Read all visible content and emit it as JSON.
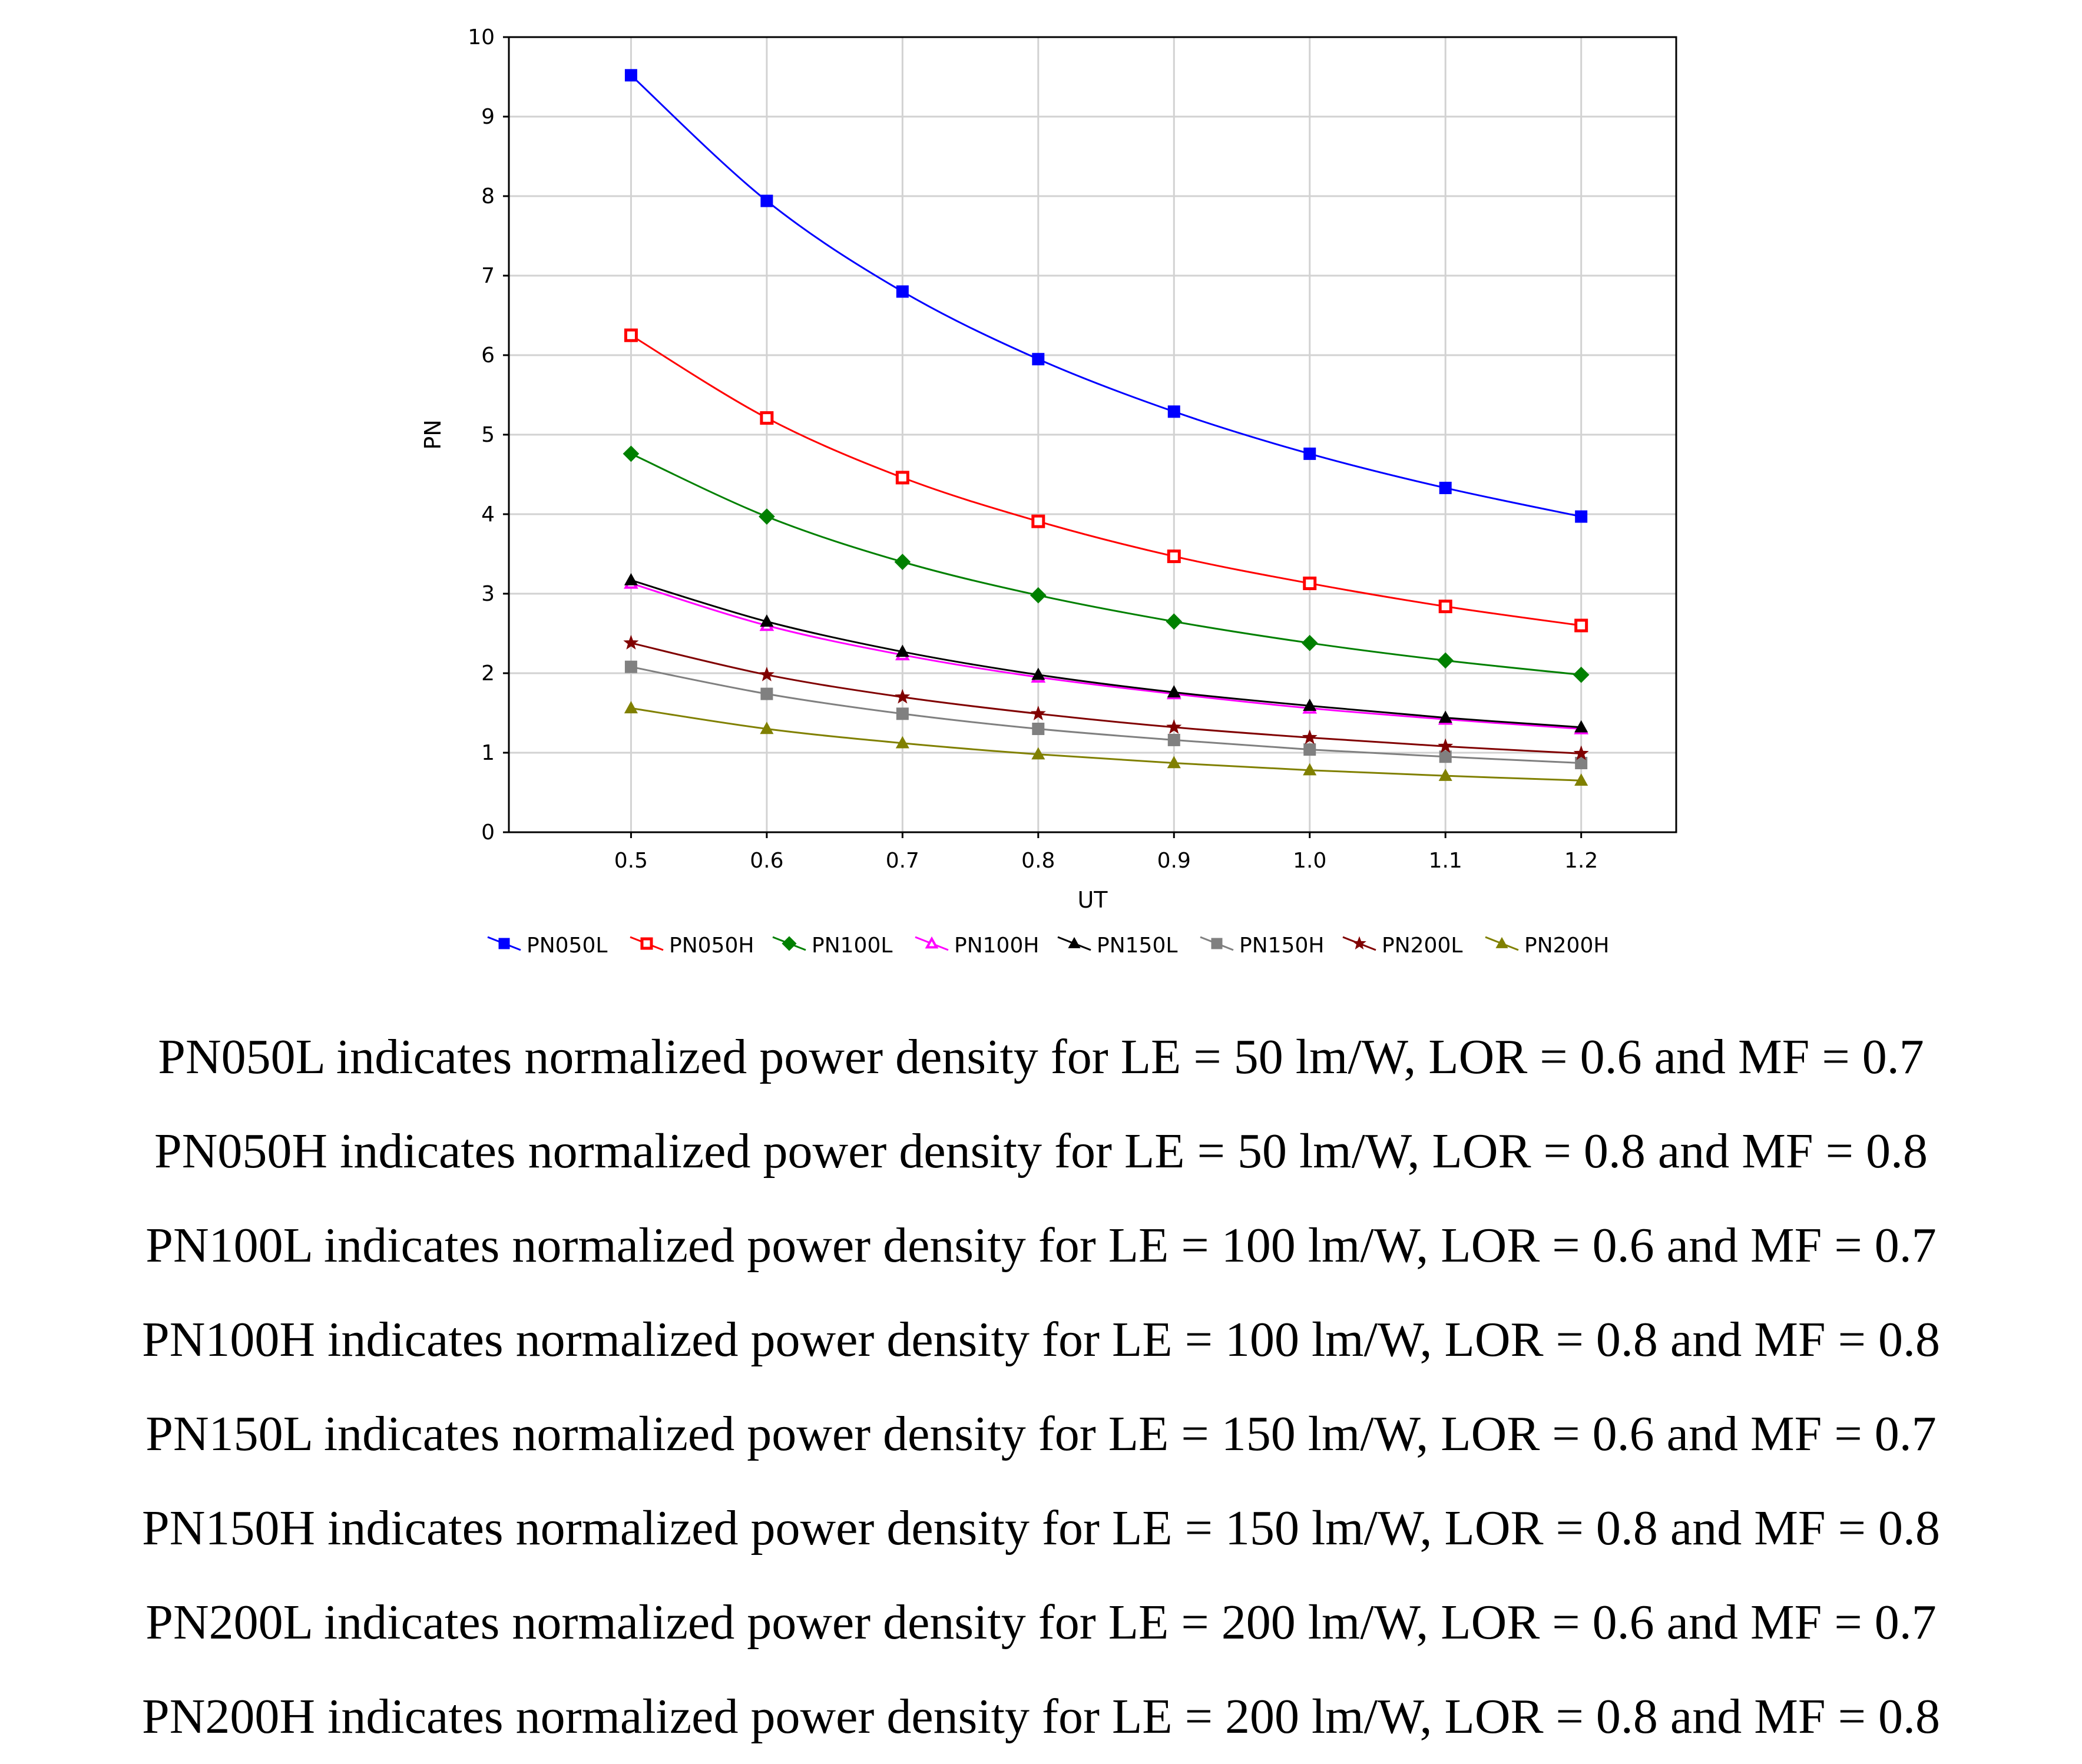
{
  "chart_data": {
    "type": "line",
    "title": "",
    "xlabel": "UT",
    "ylabel": "PN",
    "x": [
      0.5,
      0.6,
      0.7,
      0.8,
      0.9,
      1.0,
      1.1,
      1.2
    ],
    "x_tick_labels": [
      "0.5",
      "0.6",
      "0.7",
      "0.8",
      "0.9",
      "1.0",
      "1.1",
      "1.2"
    ],
    "xlim": [
      0.41,
      1.27
    ],
    "y_ticks": [
      0,
      1,
      2,
      3,
      4,
      5,
      6,
      7,
      8,
      9,
      10
    ],
    "y_tick_labels": [
      "0",
      "1",
      "2",
      "3",
      "4",
      "5",
      "6",
      "7",
      "8",
      "9",
      "10"
    ],
    "ylim": [
      0,
      10
    ],
    "grid": true,
    "legend_position": "bottom",
    "series": [
      {
        "name": "PN050L",
        "color": "#0000ff",
        "marker": "square-filled",
        "values": [
          9.52,
          7.94,
          6.8,
          5.95,
          5.29,
          4.76,
          4.33,
          3.97
        ]
      },
      {
        "name": "PN050H",
        "color": "#ff0000",
        "marker": "square-open",
        "values": [
          6.25,
          5.21,
          4.46,
          3.91,
          3.47,
          3.13,
          2.84,
          2.6
        ]
      },
      {
        "name": "PN100L",
        "color": "#008000",
        "marker": "diamond",
        "values": [
          4.76,
          3.97,
          3.4,
          2.98,
          2.65,
          2.38,
          2.16,
          1.98
        ]
      },
      {
        "name": "PN100H",
        "color": "#ff00ff",
        "marker": "triangle-open",
        "values": [
          3.13,
          2.6,
          2.23,
          1.95,
          1.74,
          1.56,
          1.42,
          1.3
        ]
      },
      {
        "name": "PN150L",
        "color": "#000000",
        "marker": "triangle-filled",
        "values": [
          3.17,
          2.65,
          2.27,
          1.98,
          1.76,
          1.59,
          1.44,
          1.32
        ]
      },
      {
        "name": "PN150H",
        "color": "#808080",
        "marker": "square-filled",
        "values": [
          2.08,
          1.74,
          1.49,
          1.3,
          1.16,
          1.04,
          0.95,
          0.87
        ]
      },
      {
        "name": "PN200L",
        "color": "#800000",
        "marker": "star",
        "values": [
          2.38,
          1.98,
          1.7,
          1.49,
          1.32,
          1.19,
          1.08,
          0.99
        ]
      },
      {
        "name": "PN200H",
        "color": "#808000",
        "marker": "triangle-filled",
        "values": [
          1.56,
          1.3,
          1.12,
          0.98,
          0.87,
          0.78,
          0.71,
          0.65
        ]
      }
    ]
  },
  "captions": [
    "PN050L indicates normalized power density for LE = 50 lm/W, LOR = 0.6 and MF = 0.7",
    "PN050H indicates normalized power density for LE = 50 lm/W, LOR = 0.8 and MF = 0.8",
    "PN100L indicates normalized power density for LE = 100 lm/W, LOR = 0.6 and MF = 0.7",
    "PN100H indicates normalized power density for LE = 100 lm/W, LOR = 0.8 and MF = 0.8",
    "PN150L indicates normalized power density for LE = 150 lm/W, LOR = 0.6 and MF = 0.7",
    "PN150H indicates normalized power density for LE = 150 lm/W, LOR = 0.8 and MF = 0.8",
    "PN200L indicates normalized power density for LE = 200 lm/W, LOR = 0.6 and MF = 0.7",
    "PN200H indicates normalized power density for LE = 200 lm/W, LOR = 0.8 and MF = 0.8"
  ]
}
